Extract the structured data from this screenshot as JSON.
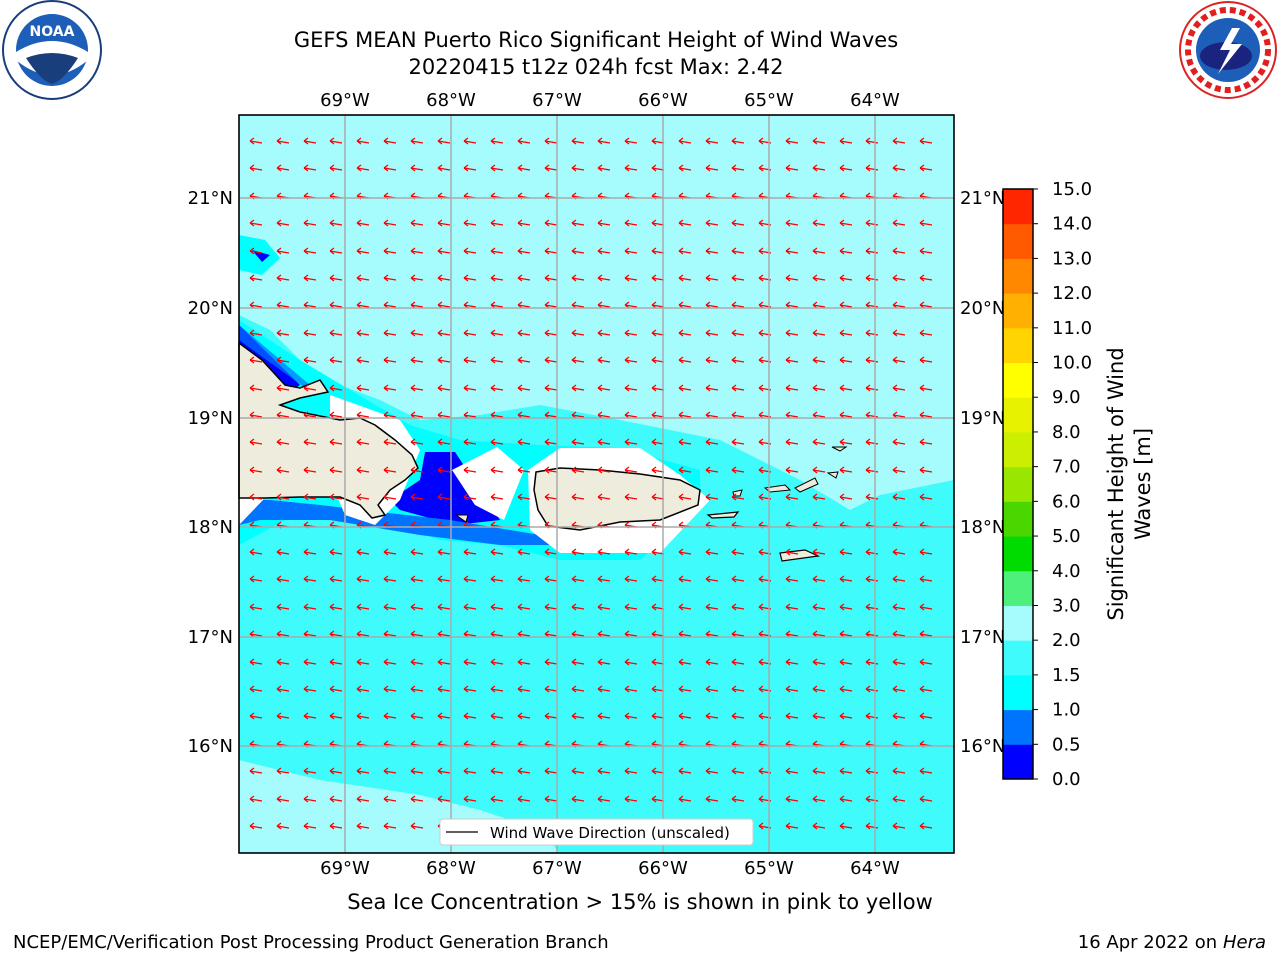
{
  "title": {
    "line1": "GEFS MEAN Puerto Rico Significant Height of Wind Waves",
    "line2": "20220415 t12z 024h fcst   Max: 2.42"
  },
  "map": {
    "lon_ticks": [
      "69°W",
      "68°W",
      "67°W",
      "66°W",
      "65°W",
      "64°W"
    ],
    "lat_ticks": [
      "21°N",
      "20°N",
      "19°N",
      "18°N",
      "17°N",
      "16°N"
    ],
    "legend_label": "Wind Wave Direction (unscaled)",
    "background_color": "#3ffbfb",
    "land_color": "#eeecdc"
  },
  "colorbar": {
    "label_line1": "Significant Height of Wind",
    "label_line2": "Waves [m]",
    "tick_labels": [
      "0.0",
      "0.5",
      "1.0",
      "1.5",
      "2.0",
      "3.0",
      "4.0",
      "5.0",
      "6.0",
      "7.0",
      "8.0",
      "9.0",
      "10.0",
      "11.0",
      "12.0",
      "13.0",
      "14.0",
      "15.0"
    ],
    "colors": [
      "#0000ff",
      "#0073ff",
      "#00ffff",
      "#40fbfb",
      "#a6fcfc",
      "#4cf07a",
      "#00dc00",
      "#4cd600",
      "#99e600",
      "#ccee00",
      "#e6f200",
      "#ffff00",
      "#ffd400",
      "#ffb000",
      "#ff8800",
      "#ff5a00",
      "#ff2600",
      "#ff0000"
    ]
  },
  "logos": {
    "noaa_text": "NOAA",
    "nws_text": "NATIONAL WEATHER SERVICE"
  },
  "note": "Sea Ice Concentration > 15% is shown in pink to yellow",
  "footer": {
    "left": "NCEP/EMC/Verification Post Processing Product Generation Branch",
    "right_date": "16 Apr 2022 on ",
    "right_host": "Hera"
  }
}
